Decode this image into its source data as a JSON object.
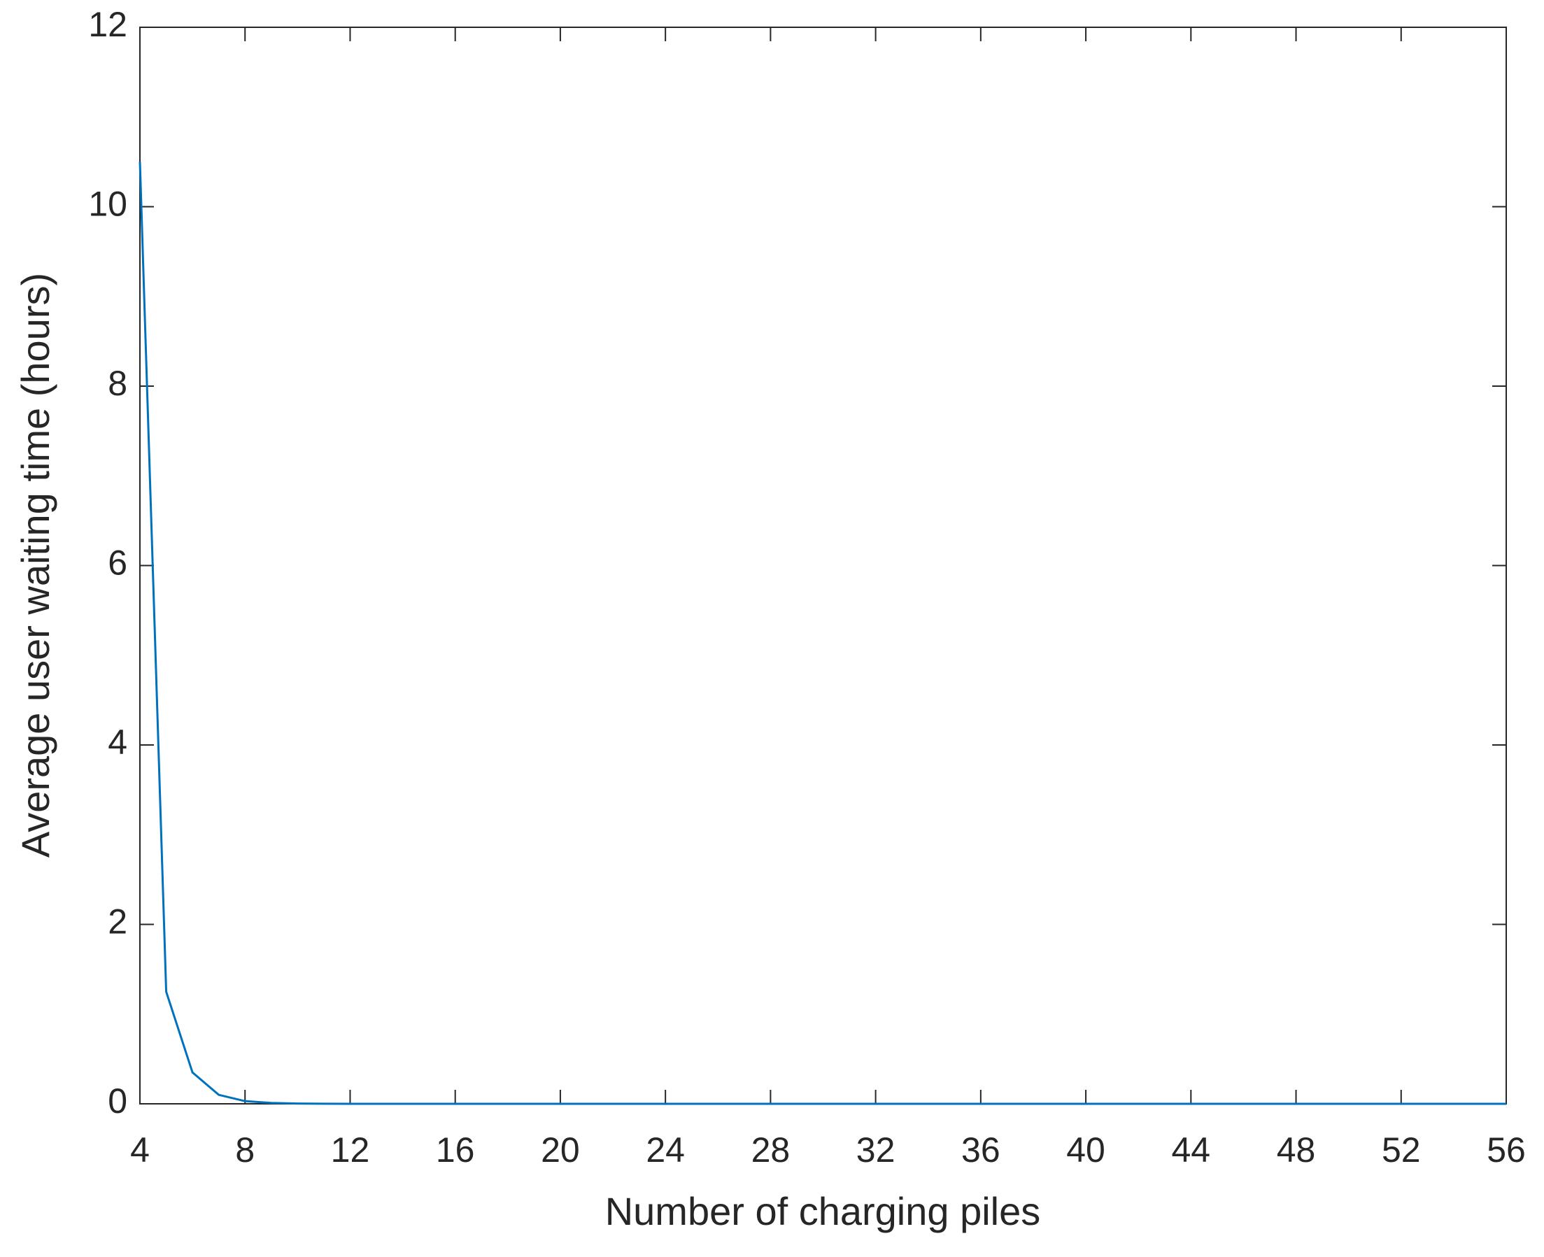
{
  "chart_data": {
    "type": "line",
    "x_label": "Number of charging piles",
    "y_label": "Average user waiting time (hours)",
    "x": [
      4,
      5,
      6,
      7,
      8,
      9,
      10,
      11,
      12,
      13,
      14,
      15,
      16,
      17,
      18,
      19,
      20,
      21,
      22,
      23,
      24,
      25,
      26,
      27,
      28,
      29,
      30,
      31,
      32,
      33,
      34,
      35,
      36,
      37,
      38,
      39,
      40,
      41,
      42,
      43,
      44,
      45,
      46,
      47,
      48,
      49,
      50,
      51,
      52,
      53,
      54,
      55,
      56
    ],
    "series": [
      {
        "color": "#0072bd",
        "values": [
          10.5,
          1.25,
          0.35,
          0.1,
          0.03,
          0.01,
          0.003,
          0.001,
          0,
          0,
          0,
          0,
          0,
          0,
          0,
          0,
          0,
          0,
          0,
          0,
          0,
          0,
          0,
          0,
          0,
          0,
          0,
          0,
          0,
          0,
          0,
          0,
          0,
          0,
          0,
          0,
          0,
          0,
          0,
          0,
          0,
          0,
          0,
          0,
          0,
          0,
          0,
          0,
          0,
          0,
          0,
          0,
          0
        ]
      }
    ],
    "xlim": [
      4,
      56
    ],
    "xticks": [
      4,
      8,
      12,
      16,
      20,
      24,
      28,
      32,
      36,
      40,
      44,
      48,
      52,
      56
    ],
    "ylim": [
      0,
      12
    ],
    "yticks": [
      0,
      2,
      4,
      6,
      8,
      10,
      12
    ],
    "grid": false
  }
}
